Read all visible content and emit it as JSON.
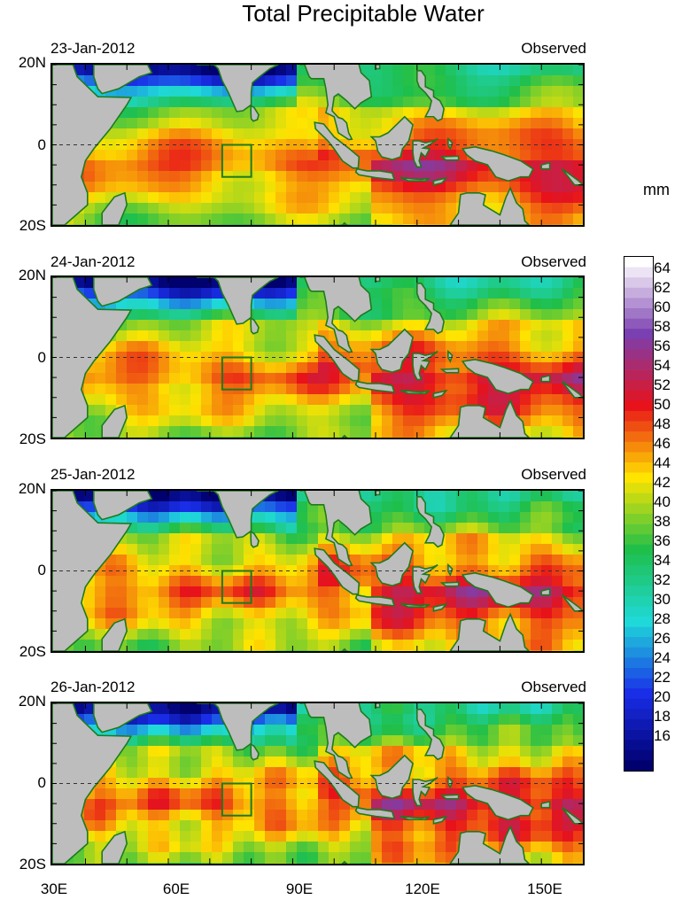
{
  "title": "Total Precipitable Water",
  "panels": [
    {
      "date": "23-Jan-2012",
      "status": "Observed"
    },
    {
      "date": "24-Jan-2012",
      "status": "Observed"
    },
    {
      "date": "25-Jan-2012",
      "status": "Observed"
    },
    {
      "date": "26-Jan-2012",
      "status": "Observed"
    }
  ],
  "lat_labels": {
    "north": "20N",
    "equator": "0",
    "south": "20S"
  },
  "lon_labels": [
    "30E",
    "60E",
    "90E",
    "120E",
    "150E"
  ],
  "colorbar": {
    "unit": "mm",
    "labels": [
      "64",
      "62",
      "60",
      "58",
      "56",
      "54",
      "52",
      "50",
      "48",
      "46",
      "44",
      "42",
      "40",
      "38",
      "36",
      "34",
      "32",
      "30",
      "28",
      "26",
      "24",
      "22",
      "20",
      "18",
      "16"
    ]
  },
  "colors": {
    "land": "#bdbdbd",
    "coast": "#1e7a1e",
    "box": "#1e7a1e",
    "scale_top": "#ffffff",
    "scale_high": "#7a3fb0",
    "scale_mid": "#e8121a",
    "scale_warm": "#ffe400",
    "scale_green": "#1fbf4a",
    "scale_cyan": "#1fd9d9",
    "scale_blue": "#1a2ee8",
    "scale_bottom": "#00006e"
  }
}
